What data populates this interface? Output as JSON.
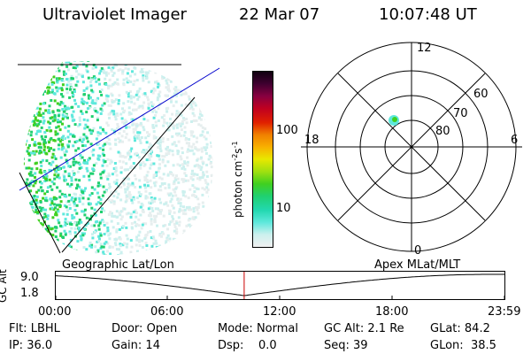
{
  "header": {
    "instrument": "Ultraviolet Imager",
    "date": "22 Mar 07",
    "time": "10:07:48 UT"
  },
  "colorbar": {
    "unit_label": "photon cm",
    "unit_sup1": "-2",
    "unit_mid": "s",
    "unit_sup2": "-1",
    "ticks": [
      {
        "value": 100,
        "label": "100"
      },
      {
        "value": 10,
        "label": "10"
      }
    ],
    "colors": [
      "#f0f0f0",
      "#ccf0ee",
      "#5ee8dc",
      "#22d8b0",
      "#20d070",
      "#40d020",
      "#a0e010",
      "#e8e800",
      "#f8b000",
      "#f08000",
      "#e02000",
      "#c00020",
      "#880040",
      "#400030",
      "#100010"
    ]
  },
  "polar_plot": {
    "mlt_labels": {
      "top": "12",
      "left": "18",
      "right": "6",
      "bottom": "0"
    },
    "lat_labels": [
      "60",
      "70",
      "80"
    ]
  },
  "timeline": {
    "left_title": "Geographic Lat/Lon",
    "right_title": "Apex MLat/MLT",
    "y_axis_label": "GC Alt",
    "y_ticks": [
      "9.0",
      "1.8"
    ],
    "x_ticks": [
      "00:00",
      "06:00",
      "12:00",
      "18:00",
      "23:59"
    ],
    "current_time_fraction": 0.42
  },
  "status": {
    "row1": [
      {
        "label": "Flt:",
        "value": "LBHL"
      },
      {
        "label": "Door:",
        "value": "Open"
      },
      {
        "label": "Mode:",
        "value": "Normal"
      },
      {
        "label": "GC Alt:",
        "value": "2.1 Re"
      },
      {
        "label": "GLat:",
        "value": "84.2"
      }
    ],
    "row2": [
      {
        "label": "IP:",
        "value": "36.0"
      },
      {
        "label": "Gain:",
        "value": "14"
      },
      {
        "label": "Dsp:",
        "value": "0.0"
      },
      {
        "label": "Seq:",
        "value": "39"
      },
      {
        "label": "GLon:",
        "value": "38.5"
      }
    ]
  },
  "colors": {
    "blue_line": "#0000cc",
    "red_marker": "#cc0000"
  }
}
